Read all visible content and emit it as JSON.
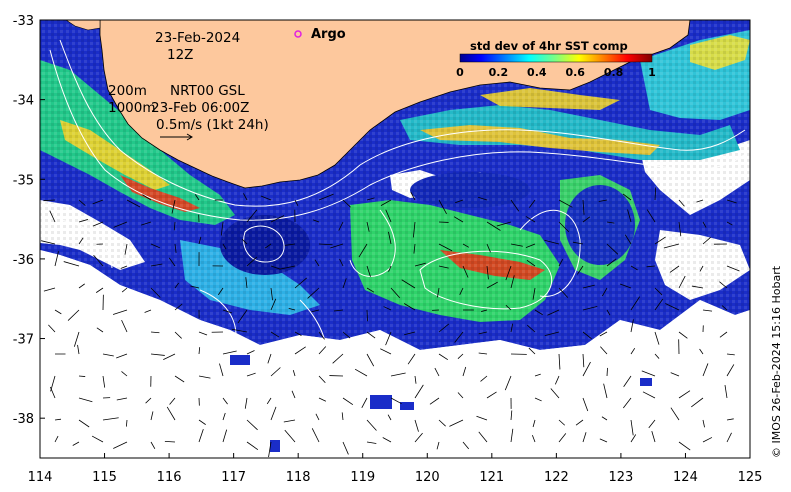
{
  "map": {
    "date_label": "23-Feb-2024",
    "time_label": "12Z",
    "depth_label_200": "200m",
    "depth_label_1000": "1000m",
    "product_label": "NRT00 GSL",
    "product_time_label": "23-Feb 06:00Z",
    "scale_label": "0.5m/s (1kt 24h)",
    "argo_label": "Argo",
    "credit": "© IMOS 26-Feb-2024 15:16 Hobart",
    "colors": {
      "land": "#fdc89d",
      "missing": "#ffffff",
      "argo_marker": "#e020e0",
      "contour": "#ffffff",
      "vectors": "#000000"
    }
  },
  "colorbar": {
    "title": "std dev of 4hr SST comp",
    "ticks": [
      "0",
      "0.2",
      "0.4",
      "0.6",
      "0.8",
      "1"
    ],
    "range": [
      0,
      1
    ],
    "colormap": "jet"
  },
  "axes": {
    "x_ticks": [
      "114",
      "115",
      "116",
      "117",
      "118",
      "119",
      "120",
      "121",
      "122",
      "123",
      "124",
      "125"
    ],
    "y_ticks": [
      "-33",
      "-34",
      "-35",
      "-36",
      "-37",
      "-38"
    ],
    "lon_range": [
      114,
      125
    ],
    "lat_range": [
      -38.5,
      -33
    ]
  }
}
